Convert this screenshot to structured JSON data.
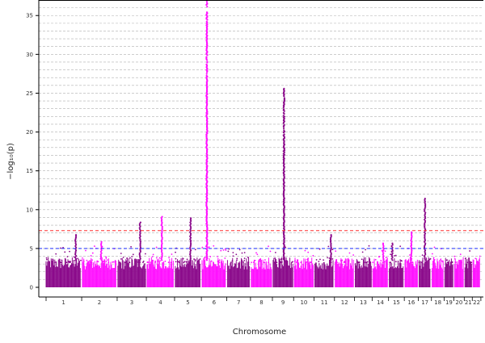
{
  "chart_data": {
    "type": "scatter",
    "subtype": "manhattan",
    "xlabel": "Chromosome",
    "ylabel": "−log₁₀(p)",
    "ylim": [
      0,
      37
    ],
    "y_ticks": [
      0,
      5,
      10,
      15,
      20,
      25,
      30,
      35
    ],
    "grid": true,
    "grid_style": "dashed, gray, one line per unit",
    "colors": {
      "odd_chromosome": "#8B0A8B",
      "even_chromosome": "#FF11FF"
    },
    "thresholds": [
      {
        "name": "genome-wide",
        "value": 7.3,
        "color": "#FF3030"
      },
      {
        "name": "suggestive",
        "value": 5.0,
        "color": "#2030FF"
      }
    ],
    "chromosomes": [
      "1",
      "2",
      "3",
      "4",
      "5",
      "6",
      "7",
      "8",
      "9",
      "10",
      "11",
      "12",
      "13",
      "14",
      "15",
      "16",
      "17",
      "18",
      "19",
      "20",
      "21",
      "22"
    ],
    "peaks": [
      {
        "chromosome": "6",
        "max_y": 37
      },
      {
        "chromosome": "9",
        "max_y": 25.6
      },
      {
        "chromosome": "17",
        "max_y": 11.5
      },
      {
        "chromosome": "4",
        "max_y": 9.1
      },
      {
        "chromosome": "5",
        "max_y": 8.9
      },
      {
        "chromosome": "3",
        "max_y": 8.5
      },
      {
        "chromosome": "16",
        "max_y": 7.2
      },
      {
        "chromosome": "1",
        "max_y": 6.8
      },
      {
        "chromosome": "11",
        "max_y": 6.8
      },
      {
        "chromosome": "2",
        "max_y": 5.9
      },
      {
        "chromosome": "14",
        "max_y": 5.8
      },
      {
        "chromosome": "15",
        "max_y": 5.8
      }
    ]
  }
}
